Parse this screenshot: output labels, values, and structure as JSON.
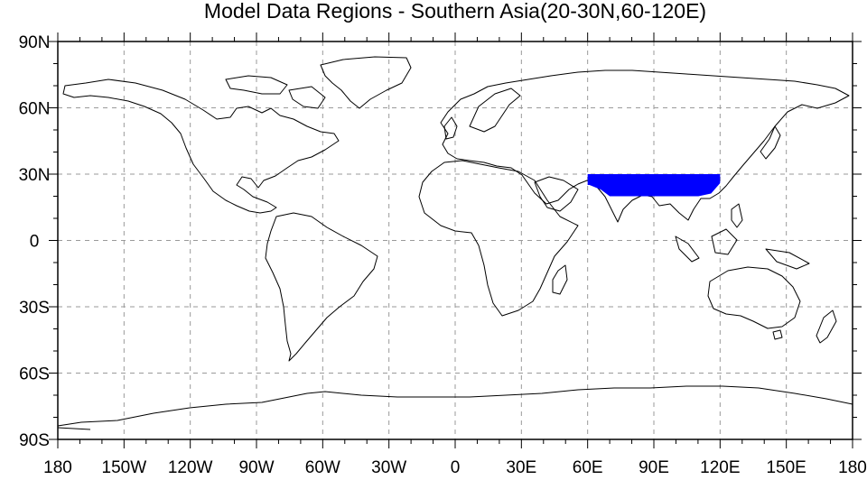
{
  "title": "Model Data Regions - Southern Asia(20-30N,60-120E)",
  "colors": {
    "region_fill": "#0000ff",
    "coastline": "#000000",
    "grid": "#9a9a9a",
    "frame": "#000000"
  },
  "map": {
    "projection": "cylindrical-equidistant",
    "lon_range": [
      -180,
      180
    ],
    "lat_range": [
      -90,
      90
    ],
    "grid": true,
    "grid_style": "dashed"
  },
  "region": {
    "name": "Southern Asia",
    "lat_range": [
      20,
      30
    ],
    "lon_range": [
      60,
      120
    ],
    "lat_units": "N",
    "lon_units": "E"
  },
  "x_ticks": [
    {
      "value": -180,
      "label": "180"
    },
    {
      "value": -150,
      "label": "150W"
    },
    {
      "value": -120,
      "label": "120W"
    },
    {
      "value": -90,
      "label": "90W"
    },
    {
      "value": -60,
      "label": "60W"
    },
    {
      "value": -30,
      "label": "30W"
    },
    {
      "value": 0,
      "label": "0"
    },
    {
      "value": 30,
      "label": "30E"
    },
    {
      "value": 60,
      "label": "60E"
    },
    {
      "value": 90,
      "label": "90E"
    },
    {
      "value": 120,
      "label": "120E"
    },
    {
      "value": 150,
      "label": "150E"
    },
    {
      "value": 180,
      "label": "180"
    }
  ],
  "y_ticks": [
    {
      "value": 90,
      "label": "90N"
    },
    {
      "value": 60,
      "label": "60N"
    },
    {
      "value": 30,
      "label": "30N"
    },
    {
      "value": 0,
      "label": "0"
    },
    {
      "value": -30,
      "label": "30S"
    },
    {
      "value": -60,
      "label": "60S"
    },
    {
      "value": -90,
      "label": "90S"
    }
  ]
}
